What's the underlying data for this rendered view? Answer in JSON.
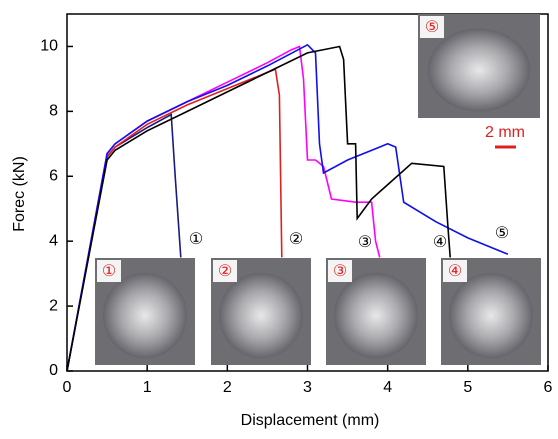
{
  "chart_data": {
    "type": "line",
    "x_label": "Displacement (mm)",
    "y_label": "Forec (kN)",
    "xlim": [
      0,
      6
    ],
    "ylim": [
      0,
      11
    ],
    "xticks": [
      0,
      1,
      2,
      3,
      4,
      5,
      6
    ],
    "yticks": [
      0,
      2,
      4,
      6,
      8,
      10
    ],
    "series": [
      {
        "color": "#1a1a80",
        "x": [
          0,
          0.5,
          0.6,
          1.0,
          1.3,
          1.35,
          1.42
        ],
        "values": [
          0,
          6.6,
          6.9,
          7.5,
          7.9,
          6.0,
          3.5
        ]
      },
      {
        "color": "#e02020",
        "x": [
          0,
          0.5,
          0.6,
          1.0,
          1.5,
          2.0,
          2.5,
          2.6,
          2.65,
          2.68
        ],
        "values": [
          0,
          6.6,
          6.9,
          7.6,
          8.2,
          8.7,
          9.2,
          9.3,
          8.5,
          3.5
        ]
      },
      {
        "color": "#ff00ff",
        "x": [
          0,
          0.5,
          0.6,
          1.0,
          1.5,
          2.0,
          2.5,
          2.8,
          2.9,
          2.95,
          3.0,
          3.1,
          3.2,
          3.3,
          3.6,
          3.8,
          3.85,
          3.9
        ],
        "values": [
          0,
          6.7,
          7.0,
          7.7,
          8.3,
          8.9,
          9.5,
          9.9,
          10.0,
          9.0,
          6.5,
          6.5,
          6.3,
          5.3,
          5.2,
          5.2,
          4.0,
          3.5
        ]
      },
      {
        "color": "#1010ee",
        "x": [
          0,
          0.5,
          0.6,
          1.0,
          1.5,
          2.0,
          2.5,
          3.0,
          3.1,
          3.15,
          3.2,
          3.5,
          4.0,
          4.1,
          4.2,
          4.6,
          5.0,
          5.5
        ],
        "values": [
          0,
          6.7,
          7.0,
          7.7,
          8.3,
          8.8,
          9.4,
          10.05,
          9.8,
          7.0,
          6.1,
          6.5,
          7.0,
          6.9,
          5.2,
          4.6,
          4.1,
          3.6
        ]
      },
      {
        "color": "#000000",
        "x": [
          0,
          0.5,
          0.6,
          1.0,
          1.5,
          2.0,
          2.5,
          3.0,
          3.4,
          3.45,
          3.5,
          3.6,
          3.62,
          3.8,
          4.3,
          4.7,
          4.75,
          4.78
        ],
        "values": [
          0,
          6.5,
          6.8,
          7.4,
          8.0,
          8.6,
          9.2,
          9.8,
          10.0,
          9.6,
          7.0,
          7.0,
          4.7,
          5.3,
          6.4,
          6.3,
          4.5,
          3.5
        ]
      }
    ],
    "annotations": [
      "①",
      "②",
      "③",
      "④",
      "⑤"
    ],
    "insets": [
      "①",
      "②",
      "③",
      "④",
      "⑤"
    ],
    "scale_bar": "2 mm"
  }
}
